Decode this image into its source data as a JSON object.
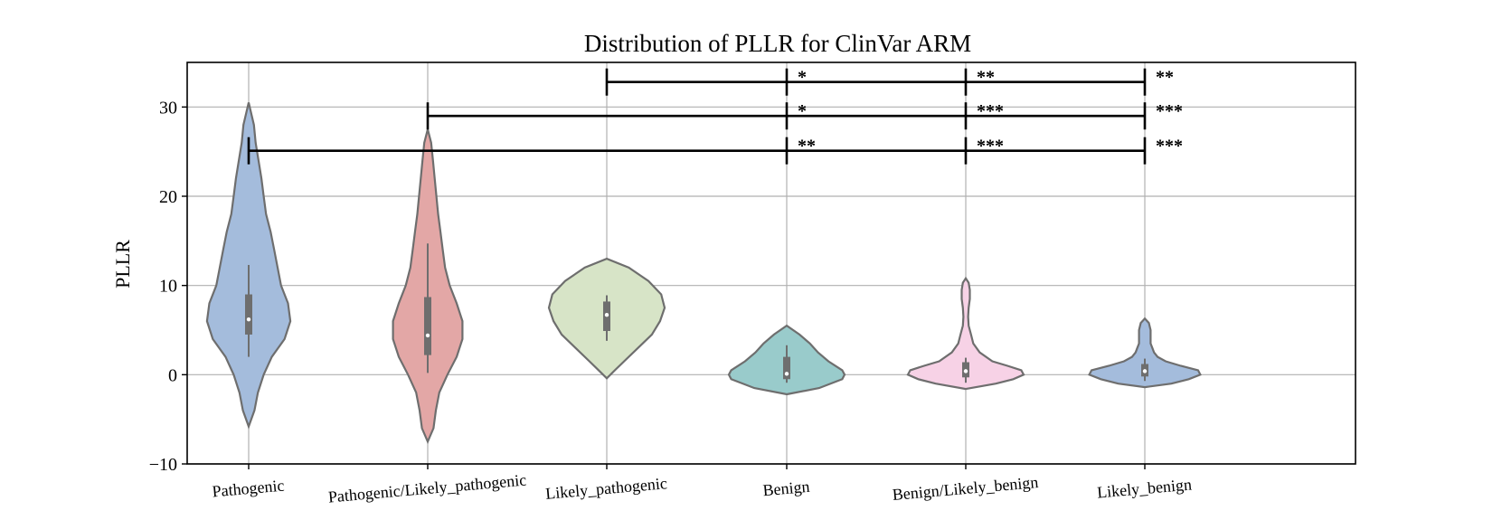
{
  "chart_data": {
    "type": "violin",
    "title": "Distribution of PLLR for ClinVar ARM",
    "xlabel": "",
    "ylabel": "PLLR",
    "ylim": [
      -10,
      35
    ],
    "yticks": [
      -10,
      0,
      10,
      20,
      30
    ],
    "grid": true,
    "categories": [
      "Pathogenic",
      "Pathogenic/Likely_pathogenic",
      "Likely_pathogenic",
      "Benign",
      "Benign/Likely_benign",
      "Likely_benign"
    ],
    "colors": [
      "#a4bcdc",
      "#e3a7a6",
      "#d7e4c7",
      "#99cbcb",
      "#f7d2e6",
      "#a4bcdc"
    ],
    "violins": [
      {
        "category": "Pathogenic",
        "profile": [
          [
            -5.8,
            0
          ],
          [
            -4,
            0.1
          ],
          [
            -2,
            0.16
          ],
          [
            0,
            0.26
          ],
          [
            2,
            0.4
          ],
          [
            4,
            0.62
          ],
          [
            6,
            0.72
          ],
          [
            8,
            0.68
          ],
          [
            10,
            0.56
          ],
          [
            12,
            0.5
          ],
          [
            14,
            0.44
          ],
          [
            16,
            0.38
          ],
          [
            18,
            0.3
          ],
          [
            20,
            0.26
          ],
          [
            22,
            0.22
          ],
          [
            24,
            0.17
          ],
          [
            26,
            0.12
          ],
          [
            28,
            0.09
          ],
          [
            30.5,
            0
          ]
        ],
        "box": {
          "q1": 4.5,
          "median": 6.2,
          "q3": 9.0,
          "whisker_low": 2.0,
          "whisker_high": 12.3
        }
      },
      {
        "category": "Pathogenic/Likely_pathogenic",
        "profile": [
          [
            -7.5,
            0
          ],
          [
            -6,
            0.1
          ],
          [
            -4,
            0.14
          ],
          [
            -2,
            0.2
          ],
          [
            0,
            0.34
          ],
          [
            2,
            0.5
          ],
          [
            4,
            0.6
          ],
          [
            6,
            0.6
          ],
          [
            8,
            0.5
          ],
          [
            10,
            0.38
          ],
          [
            12,
            0.3
          ],
          [
            14,
            0.26
          ],
          [
            16,
            0.22
          ],
          [
            18,
            0.18
          ],
          [
            20,
            0.15
          ],
          [
            22,
            0.12
          ],
          [
            24,
            0.09
          ],
          [
            26,
            0.06
          ],
          [
            27.5,
            0
          ]
        ],
        "box": {
          "q1": 2.2,
          "median": 4.4,
          "q3": 8.7,
          "whisker_low": 0.2,
          "whisker_high": 14.7
        }
      },
      {
        "category": "Likely_pathogenic",
        "profile": [
          [
            -0.4,
            0
          ],
          [
            0.5,
            0.14
          ],
          [
            1.5,
            0.3
          ],
          [
            3,
            0.54
          ],
          [
            4.5,
            0.78
          ],
          [
            6,
            0.92
          ],
          [
            7.5,
            1
          ],
          [
            9,
            0.94
          ],
          [
            10.5,
            0.72
          ],
          [
            12,
            0.38
          ],
          [
            13,
            0
          ]
        ],
        "box": {
          "q1": 4.9,
          "median": 6.7,
          "q3": 8.2,
          "whisker_low": 3.8,
          "whisker_high": 8.9
        }
      },
      {
        "category": "Benign",
        "profile": [
          [
            -2.2,
            0
          ],
          [
            -1.5,
            0.56
          ],
          [
            -0.5,
            0.96
          ],
          [
            0,
            1
          ],
          [
            0.5,
            0.96
          ],
          [
            1.5,
            0.72
          ],
          [
            2.5,
            0.54
          ],
          [
            3.5,
            0.4
          ],
          [
            4.5,
            0.22
          ],
          [
            5.5,
            0
          ]
        ],
        "box": {
          "q1": -0.5,
          "median": 0.1,
          "q3": 2.0,
          "whisker_low": -0.9,
          "whisker_high": 3.3
        }
      },
      {
        "category": "Benign/Likely_benign",
        "profile": [
          [
            -1.6,
            0
          ],
          [
            -1,
            0.52
          ],
          [
            -0.5,
            0.82
          ],
          [
            0,
            1
          ],
          [
            0.5,
            0.96
          ],
          [
            1,
            0.72
          ],
          [
            1.5,
            0.46
          ],
          [
            2.5,
            0.24
          ],
          [
            3.5,
            0.13
          ],
          [
            4.5,
            0.09
          ],
          [
            5.5,
            0.05
          ],
          [
            6.5,
            0.04
          ],
          [
            7.5,
            0.05
          ],
          [
            8.5,
            0.07
          ],
          [
            9.5,
            0.07
          ],
          [
            10.3,
            0.05
          ],
          [
            10.8,
            0
          ]
        ],
        "box": {
          "q1": -0.3,
          "median": 0.4,
          "q3": 1.4,
          "whisker_low": -0.9,
          "whisker_high": 1.9
        }
      },
      {
        "category": "Likely_benign",
        "profile": [
          [
            -1.4,
            0
          ],
          [
            -1,
            0.46
          ],
          [
            -0.5,
            0.76
          ],
          [
            0,
            0.96
          ],
          [
            0.5,
            0.92
          ],
          [
            1,
            0.62
          ],
          [
            1.5,
            0.36
          ],
          [
            2,
            0.22
          ],
          [
            2.5,
            0.16
          ],
          [
            3,
            0.13
          ],
          [
            3.5,
            0.1
          ],
          [
            4,
            0.1
          ],
          [
            4.5,
            0.1
          ],
          [
            5,
            0.1
          ],
          [
            5.8,
            0.07
          ],
          [
            6.3,
            0
          ]
        ],
        "box": {
          "q1": -0.2,
          "median": 0.4,
          "q3": 1.2,
          "whisker_low": -0.7,
          "whisker_high": 1.8
        }
      }
    ],
    "significance": [
      {
        "from": "Likely_pathogenic",
        "y": 32.8,
        "targets": [
          {
            "category": "Benign",
            "label": "*"
          },
          {
            "category": "Benign/Likely_benign",
            "label": "**"
          },
          {
            "category": "Likely_benign",
            "label": "**"
          }
        ]
      },
      {
        "from": "Pathogenic/Likely_pathogenic",
        "y": 29.0,
        "targets": [
          {
            "category": "Benign",
            "label": "*"
          },
          {
            "category": "Benign/Likely_benign",
            "label": "***"
          },
          {
            "category": "Likely_benign",
            "label": "***"
          }
        ]
      },
      {
        "from": "Pathogenic",
        "y": 25.1,
        "targets": [
          {
            "category": "Benign",
            "label": "**"
          },
          {
            "category": "Benign/Likely_benign",
            "label": "***"
          },
          {
            "category": "Likely_benign",
            "label": "***"
          }
        ]
      }
    ]
  }
}
